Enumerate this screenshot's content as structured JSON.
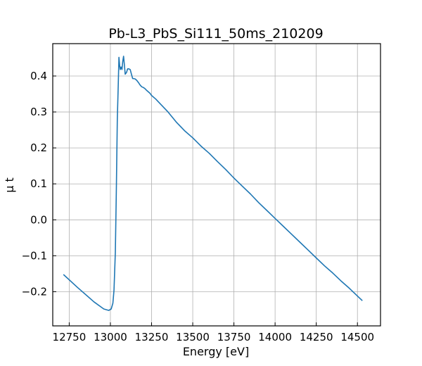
{
  "chart_data": {
    "type": "line",
    "title": "Pb-L3_PbS_Si111_50ms_210209",
    "xlabel": "Energy [eV]",
    "ylabel": "μ t",
    "xlim": [
      12650,
      14640
    ],
    "ylim": [
      -0.295,
      0.49
    ],
    "x_ticks": [
      12750,
      13000,
      13250,
      13500,
      13750,
      14000,
      14250,
      14500
    ],
    "y_ticks": [
      -0.2,
      -0.1,
      0.0,
      0.1,
      0.2,
      0.3,
      0.4
    ],
    "x_tick_labels": [
      "12750",
      "13000",
      "13250",
      "13500",
      "13750",
      "14000",
      "14250",
      "14500"
    ],
    "y_tick_labels": [
      "−0.2",
      "−0.1",
      "0.0",
      "0.1",
      "0.2",
      "0.3",
      "0.4"
    ],
    "grid": true,
    "line_color": "#1f77b4",
    "series": [
      {
        "x": [
          12715,
          12800,
          12900,
          12960,
          12990,
          13005,
          13015,
          13022,
          13030,
          13036,
          13042,
          13048,
          13052,
          13056,
          13060,
          13065,
          13070,
          13075,
          13080,
          13085,
          13090,
          13098,
          13105,
          13112,
          13120,
          13128,
          13135,
          13140,
          13150,
          13160,
          13170,
          13180,
          13190,
          13200,
          13210,
          13220,
          13240,
          13250,
          13275,
          13300,
          13350,
          13400,
          13450,
          13500,
          13550,
          13600,
          13650,
          13700,
          13750,
          13800,
          13850,
          13900,
          13950,
          14000,
          14050,
          14100,
          14150,
          14200,
          14250,
          14300,
          14350,
          14400,
          14450,
          14500,
          14530
        ],
        "y": [
          -0.152,
          -0.188,
          -0.228,
          -0.248,
          -0.252,
          -0.248,
          -0.232,
          -0.195,
          -0.09,
          0.08,
          0.28,
          0.38,
          0.452,
          0.43,
          0.418,
          0.425,
          0.418,
          0.44,
          0.455,
          0.43,
          0.405,
          0.41,
          0.42,
          0.42,
          0.418,
          0.405,
          0.393,
          0.393,
          0.392,
          0.388,
          0.382,
          0.375,
          0.37,
          0.368,
          0.365,
          0.36,
          0.352,
          0.346,
          0.336,
          0.324,
          0.3,
          0.272,
          0.248,
          0.228,
          0.205,
          0.185,
          0.162,
          0.14,
          0.116,
          0.094,
          0.072,
          0.048,
          0.026,
          0.004,
          -0.018,
          -0.04,
          -0.062,
          -0.084,
          -0.106,
          -0.128,
          -0.148,
          -0.17,
          -0.19,
          -0.212,
          -0.225
        ]
      }
    ]
  }
}
